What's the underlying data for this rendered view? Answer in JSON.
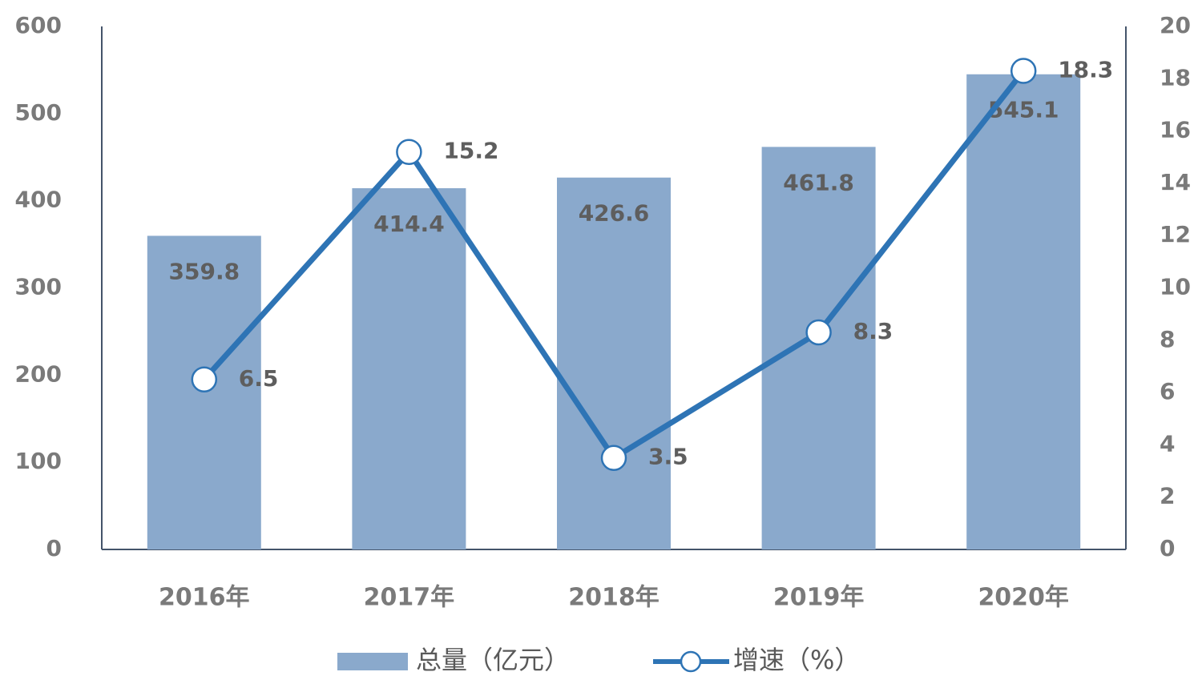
{
  "chart_data": {
    "type": "combo",
    "categories": [
      "2016年",
      "2017年",
      "2018年",
      "2019年",
      "2020年"
    ],
    "series": [
      {
        "name": "总量（亿元）",
        "type": "bar",
        "color": "#8aa9cc",
        "values": [
          359.8,
          414.4,
          426.6,
          461.8,
          545.1
        ]
      },
      {
        "name": "增速（%）",
        "type": "line",
        "axis": "y2",
        "color": "#2e74b5",
        "values": [
          6.5,
          15.2,
          3.5,
          8.3,
          18.3
        ]
      }
    ],
    "ylim": [
      0,
      600
    ],
    "yticks": [
      0,
      100,
      200,
      300,
      400,
      500,
      600
    ],
    "y2lim": [
      0,
      20
    ],
    "y2ticks": [
      0,
      2,
      4,
      6,
      8,
      10,
      12,
      14,
      16,
      18,
      20
    ],
    "grid": false,
    "legend": "bottom"
  }
}
